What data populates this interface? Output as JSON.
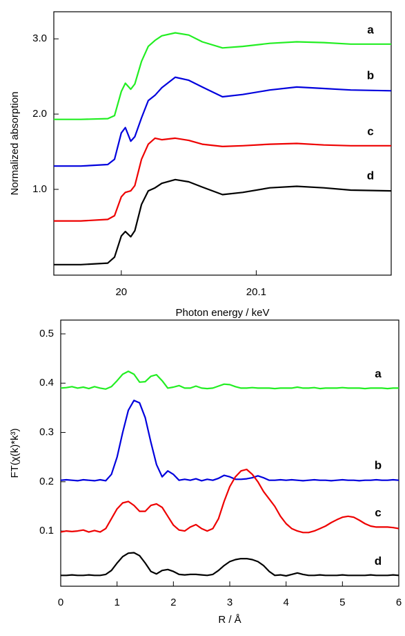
{
  "chart_data": [
    {
      "type": "line",
      "xlabel": "Photon energy / keV",
      "ylabel": "Normalized absorption",
      "xlim": [
        19.95,
        20.2
      ],
      "ylim": [
        -0.14,
        3.36
      ],
      "xticks": [
        20,
        20.1
      ],
      "yticks": [
        {
          "value": 1,
          "label": "1.0"
        },
        {
          "value": 2,
          "label": "2.0"
        },
        {
          "value": 3,
          "label": "3.0"
        }
      ],
      "x": [
        19.95,
        19.97,
        19.99,
        19.995,
        20.0,
        20.003,
        20.007,
        20.01,
        20.015,
        20.02,
        20.025,
        20.03,
        20.04,
        20.05,
        20.06,
        20.075,
        20.09,
        20.11,
        20.13,
        20.15,
        20.17,
        20.2
      ],
      "series": [
        {
          "name": "a",
          "color": "#22ee22",
          "values": [
            1.93,
            1.93,
            1.94,
            1.98,
            2.3,
            2.41,
            2.33,
            2.4,
            2.7,
            2.9,
            2.98,
            3.04,
            3.08,
            3.05,
            2.96,
            2.88,
            2.9,
            2.94,
            2.96,
            2.95,
            2.93,
            2.93
          ]
        },
        {
          "name": "b",
          "color": "#0000dd",
          "values": [
            1.31,
            1.31,
            1.33,
            1.4,
            1.75,
            1.82,
            1.64,
            1.7,
            1.95,
            2.18,
            2.25,
            2.35,
            2.49,
            2.45,
            2.36,
            2.23,
            2.26,
            2.32,
            2.36,
            2.34,
            2.32,
            2.31
          ]
        },
        {
          "name": "c",
          "color": "#ee0000",
          "values": [
            0.58,
            0.58,
            0.6,
            0.65,
            0.9,
            0.96,
            0.98,
            1.05,
            1.4,
            1.6,
            1.68,
            1.66,
            1.68,
            1.65,
            1.6,
            1.57,
            1.58,
            1.6,
            1.61,
            1.59,
            1.58,
            1.58
          ]
        },
        {
          "name": "d",
          "color": "#000000",
          "values": [
            0.0,
            0.0,
            0.02,
            0.1,
            0.38,
            0.44,
            0.37,
            0.45,
            0.8,
            0.98,
            1.02,
            1.08,
            1.13,
            1.1,
            1.03,
            0.93,
            0.96,
            1.02,
            1.04,
            1.02,
            0.99,
            0.98
          ]
        }
      ]
    },
    {
      "type": "line",
      "xlabel": "R / Å",
      "ylabel": "FT(χ(k)*k³)",
      "xlim": [
        0,
        6
      ],
      "ylim": [
        -0.012,
        0.528
      ],
      "xticks": [
        0,
        1,
        2,
        3,
        4,
        5,
        6
      ],
      "yticks": [
        0.1,
        0.2,
        0.3,
        0.4,
        0.5
      ],
      "x": [
        0,
        0.1,
        0.2,
        0.3,
        0.4,
        0.5,
        0.6,
        0.7,
        0.8,
        0.9,
        1.0,
        1.1,
        1.2,
        1.3,
        1.4,
        1.5,
        1.6,
        1.7,
        1.8,
        1.9,
        2.0,
        2.1,
        2.2,
        2.3,
        2.4,
        2.5,
        2.6,
        2.7,
        2.8,
        2.9,
        3.0,
        3.1,
        3.2,
        3.3,
        3.4,
        3.5,
        3.6,
        3.7,
        3.8,
        3.9,
        4.0,
        4.1,
        4.2,
        4.3,
        4.4,
        4.5,
        4.6,
        4.7,
        4.8,
        4.9,
        5.0,
        5.1,
        5.2,
        5.3,
        5.4,
        5.5,
        5.6,
        5.7,
        5.8,
        5.9,
        6.0
      ],
      "series": [
        {
          "name": "a",
          "color": "#22ee22",
          "values": [
            0.39,
            0.391,
            0.393,
            0.39,
            0.392,
            0.389,
            0.393,
            0.39,
            0.388,
            0.393,
            0.405,
            0.418,
            0.424,
            0.418,
            0.402,
            0.403,
            0.414,
            0.417,
            0.405,
            0.39,
            0.392,
            0.395,
            0.39,
            0.39,
            0.394,
            0.39,
            0.389,
            0.39,
            0.394,
            0.398,
            0.397,
            0.393,
            0.39,
            0.39,
            0.391,
            0.39,
            0.39,
            0.39,
            0.389,
            0.39,
            0.39,
            0.39,
            0.392,
            0.39,
            0.39,
            0.391,
            0.389,
            0.39,
            0.39,
            0.39,
            0.391,
            0.39,
            0.39,
            0.39,
            0.389,
            0.39,
            0.39,
            0.39,
            0.389,
            0.39,
            0.39
          ]
        },
        {
          "name": "b",
          "color": "#0000dd",
          "values": [
            0.203,
            0.204,
            0.203,
            0.202,
            0.204,
            0.203,
            0.202,
            0.204,
            0.202,
            0.215,
            0.25,
            0.3,
            0.345,
            0.365,
            0.36,
            0.33,
            0.28,
            0.235,
            0.21,
            0.222,
            0.215,
            0.203,
            0.205,
            0.203,
            0.206,
            0.202,
            0.205,
            0.203,
            0.207,
            0.213,
            0.21,
            0.205,
            0.205,
            0.206,
            0.208,
            0.212,
            0.208,
            0.203,
            0.203,
            0.204,
            0.203,
            0.204,
            0.203,
            0.202,
            0.203,
            0.204,
            0.203,
            0.203,
            0.202,
            0.203,
            0.204,
            0.203,
            0.203,
            0.202,
            0.203,
            0.203,
            0.204,
            0.203,
            0.203,
            0.204,
            0.203
          ]
        },
        {
          "name": "c",
          "color": "#ee0000",
          "values": [
            0.098,
            0.1,
            0.099,
            0.1,
            0.102,
            0.098,
            0.101,
            0.098,
            0.105,
            0.125,
            0.145,
            0.157,
            0.16,
            0.152,
            0.14,
            0.14,
            0.152,
            0.155,
            0.148,
            0.13,
            0.112,
            0.102,
            0.1,
            0.108,
            0.113,
            0.105,
            0.1,
            0.105,
            0.125,
            0.16,
            0.19,
            0.21,
            0.222,
            0.225,
            0.215,
            0.2,
            0.18,
            0.165,
            0.15,
            0.13,
            0.115,
            0.105,
            0.1,
            0.097,
            0.097,
            0.1,
            0.105,
            0.11,
            0.117,
            0.123,
            0.128,
            0.13,
            0.128,
            0.122,
            0.115,
            0.11,
            0.108,
            0.108,
            0.108,
            0.107,
            0.105
          ]
        },
        {
          "name": "d",
          "color": "#000000",
          "values": [
            0.01,
            0.01,
            0.011,
            0.01,
            0.01,
            0.011,
            0.01,
            0.01,
            0.012,
            0.02,
            0.035,
            0.048,
            0.055,
            0.056,
            0.05,
            0.035,
            0.018,
            0.013,
            0.02,
            0.022,
            0.018,
            0.012,
            0.011,
            0.012,
            0.012,
            0.011,
            0.01,
            0.012,
            0.02,
            0.03,
            0.038,
            0.042,
            0.044,
            0.044,
            0.042,
            0.038,
            0.03,
            0.018,
            0.01,
            0.011,
            0.009,
            0.012,
            0.015,
            0.012,
            0.01,
            0.01,
            0.011,
            0.01,
            0.01,
            0.01,
            0.011,
            0.01,
            0.01,
            0.01,
            0.01,
            0.011,
            0.01,
            0.01,
            0.01,
            0.011,
            0.01
          ]
        }
      ]
    }
  ]
}
